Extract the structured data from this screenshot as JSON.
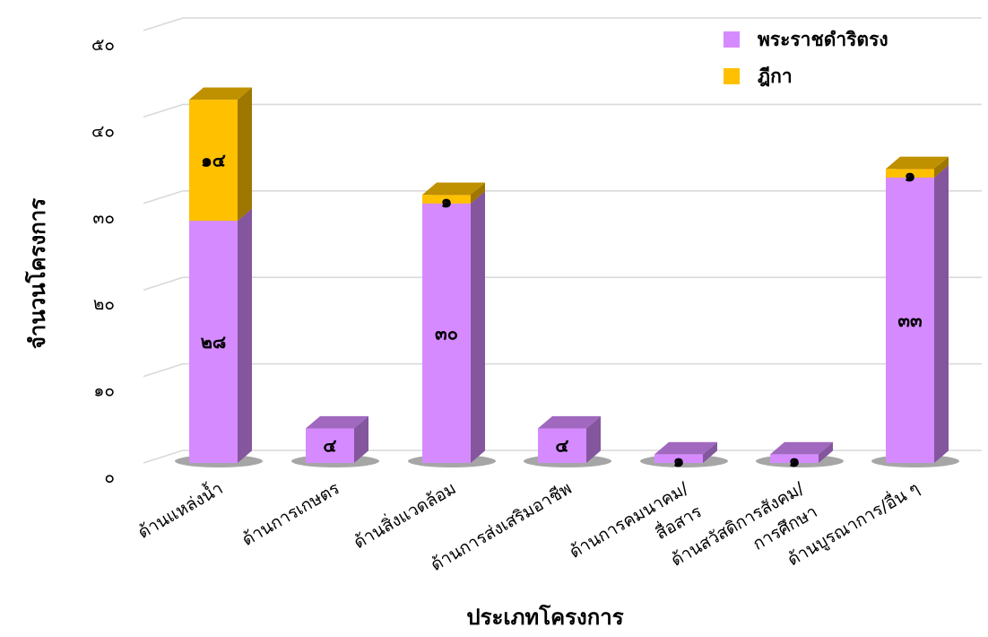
{
  "chart_data": {
    "type": "bar",
    "stacked": true,
    "three_d": true,
    "title": "",
    "xlabel": "ประเภทโครงการ",
    "ylabel": "จำนวนโครงการ",
    "ylim": [
      0,
      50
    ],
    "yticks": [
      0,
      10,
      20,
      30,
      40,
      50
    ],
    "ytick_labels": [
      "๐",
      "๑๐",
      "๒๐",
      "๓๐",
      "๔๐",
      "๕๐"
    ],
    "grid": true,
    "legend_position": "top-right",
    "categories": [
      [
        "ด้านแหล่งน้ำ"
      ],
      [
        "ด้านการเกษตร"
      ],
      [
        "ด้านสิ่งแวดล้อม"
      ],
      [
        "ด้านการส่งเสริมอาชีพ"
      ],
      [
        "ด้านการคมนาคม/",
        "สื่อสาร"
      ],
      [
        "ด้านสวัสดิการสังคม/",
        "การศึกษา"
      ],
      [
        "ด้านบูรณาการ/อื่น ๆ"
      ]
    ],
    "series": [
      {
        "name": "พระราชดำริตรง",
        "color": "#D58BFF",
        "values": [
          28,
          4,
          30,
          4,
          1,
          1,
          33
        ],
        "labels": [
          "๒๘",
          "๔",
          "๓๐",
          "๔",
          "๑",
          "๑",
          "๓๓"
        ]
      },
      {
        "name": "ฎีกา",
        "color": "#FFC000",
        "values": [
          14,
          0,
          1,
          0,
          0,
          0,
          1
        ],
        "labels": [
          "๑๔",
          "",
          "๑",
          "",
          "",
          "",
          "๑"
        ]
      }
    ]
  }
}
